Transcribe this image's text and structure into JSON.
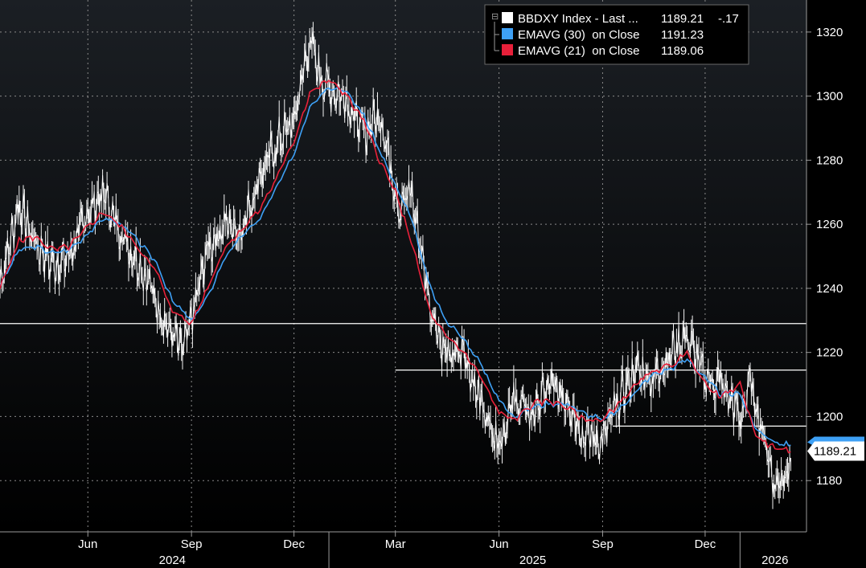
{
  "chart_data": {
    "type": "line",
    "x_range": [
      "2024-03-15",
      "2026-03-01"
    ],
    "ylim": [
      1164,
      1330
    ],
    "y_ticks": [
      1180,
      1200,
      1220,
      1240,
      1260,
      1280,
      1300,
      1320
    ],
    "month_ticks": [
      {
        "label": "Jun",
        "date": "2024-06-01"
      },
      {
        "label": "Sep",
        "date": "2024-09-01"
      },
      {
        "label": "Dec",
        "date": "2024-12-01"
      },
      {
        "label": "Mar",
        "date": "2025-03-01"
      },
      {
        "label": "Jun",
        "date": "2025-06-01"
      },
      {
        "label": "Sep",
        "date": "2025-09-01"
      },
      {
        "label": "Dec",
        "date": "2025-12-01"
      }
    ],
    "year_labels": [
      {
        "label": "2024",
        "center": "2024-08-15"
      },
      {
        "label": "2025",
        "center": "2025-07-01"
      },
      {
        "label": "2026",
        "center": "2026-02-01"
      }
    ],
    "year_boundaries": [
      "2025-01-01",
      "2026-01-01"
    ],
    "price_dates": [
      "2024-03-15",
      "2024-04-01",
      "2024-04-15",
      "2024-05-01",
      "2024-05-15",
      "2024-06-01",
      "2024-06-15",
      "2024-06-26",
      "2024-07-10",
      "2024-07-25",
      "2024-08-10",
      "2024-08-25",
      "2024-09-01",
      "2024-09-15",
      "2024-10-01",
      "2024-10-15",
      "2024-11-01",
      "2024-11-15",
      "2024-12-01",
      "2024-12-15",
      "2024-12-24",
      "2025-01-01",
      "2025-01-15",
      "2025-02-01",
      "2025-02-15",
      "2025-02-25",
      "2025-03-05",
      "2025-03-15",
      "2025-04-01",
      "2025-04-15",
      "2025-05-01",
      "2025-05-15",
      "2025-06-01",
      "2025-06-15",
      "2025-07-01",
      "2025-07-15",
      "2025-08-01",
      "2025-08-15",
      "2025-09-01",
      "2025-09-15",
      "2025-10-01",
      "2025-10-15",
      "2025-11-01",
      "2025-11-15",
      "2025-12-01",
      "2025-12-15",
      "2026-01-01",
      "2026-01-10",
      "2026-01-20",
      "2026-02-01",
      "2026-02-15"
    ],
    "price_values": [
      1242,
      1266,
      1254,
      1247,
      1250,
      1263,
      1270,
      1260,
      1252,
      1242,
      1228,
      1220,
      1230,
      1252,
      1260,
      1258,
      1275,
      1285,
      1292,
      1318,
      1306,
      1302,
      1300,
      1288,
      1295,
      1278,
      1265,
      1270,
      1235,
      1218,
      1220,
      1205,
      1192,
      1205,
      1200,
      1210,
      1205,
      1195,
      1192,
      1205,
      1215,
      1212,
      1220,
      1225,
      1212,
      1210,
      1200,
      1210,
      1198,
      1178,
      1186
    ],
    "ema30_dates": [
      "2024-03-15",
      "2024-04-01",
      "2024-04-15",
      "2024-05-01",
      "2024-05-15",
      "2024-06-01",
      "2024-06-15",
      "2024-07-01",
      "2024-07-15",
      "2024-08-01",
      "2024-08-15",
      "2024-09-01",
      "2024-09-15",
      "2024-10-01",
      "2024-10-15",
      "2024-11-01",
      "2024-11-15",
      "2024-12-01",
      "2024-12-15",
      "2025-01-01",
      "2025-01-15",
      "2025-02-01",
      "2025-02-15",
      "2025-03-01",
      "2025-03-15",
      "2025-04-01",
      "2025-04-15",
      "2025-05-01",
      "2025-05-15",
      "2025-06-01",
      "2025-06-15",
      "2025-07-01",
      "2025-07-15",
      "2025-08-01",
      "2025-08-15",
      "2025-09-01",
      "2025-09-15",
      "2025-10-01",
      "2025-10-15",
      "2025-11-01",
      "2025-11-15",
      "2025-12-01",
      "2025-12-15",
      "2026-01-01",
      "2026-01-15",
      "2026-02-01",
      "2026-02-15"
    ],
    "ema30_values": [
      1241,
      1252,
      1253,
      1251,
      1252,
      1257,
      1262,
      1260,
      1255,
      1248,
      1236,
      1230,
      1237,
      1250,
      1256,
      1262,
      1271,
      1282,
      1297,
      1303,
      1302,
      1294,
      1283,
      1272,
      1262,
      1240,
      1230,
      1224,
      1217,
      1205,
      1200,
      1203,
      1204,
      1204,
      1201,
      1199,
      1202,
      1208,
      1213,
      1215,
      1218,
      1212,
      1207,
      1207,
      1196,
      1192,
      1191
    ],
    "ema21_dates": [
      "2024-03-15",
      "2024-04-01",
      "2024-04-15",
      "2024-05-01",
      "2024-05-15",
      "2024-06-01",
      "2024-06-15",
      "2024-07-01",
      "2024-07-15",
      "2024-08-01",
      "2024-08-15",
      "2024-09-01",
      "2024-09-15",
      "2024-10-01",
      "2024-10-15",
      "2024-11-01",
      "2024-11-15",
      "2024-12-01",
      "2024-12-15",
      "2025-01-01",
      "2025-01-15",
      "2025-02-01",
      "2025-02-15",
      "2025-03-01",
      "2025-03-15",
      "2025-04-01",
      "2025-04-15",
      "2025-05-01",
      "2025-05-15",
      "2025-06-01",
      "2025-06-15",
      "2025-07-01",
      "2025-07-15",
      "2025-08-01",
      "2025-08-15",
      "2025-09-01",
      "2025-09-15",
      "2025-10-01",
      "2025-10-15",
      "2025-11-01",
      "2025-11-15",
      "2025-12-01",
      "2025-12-15",
      "2026-01-01",
      "2026-01-15",
      "2026-02-01",
      "2026-02-15"
    ],
    "ema21_values": [
      1240,
      1255,
      1256,
      1252,
      1253,
      1259,
      1264,
      1259,
      1253,
      1245,
      1233,
      1229,
      1240,
      1253,
      1258,
      1265,
      1274,
      1286,
      1301,
      1305,
      1301,
      1292,
      1280,
      1270,
      1255,
      1232,
      1225,
      1220,
      1213,
      1201,
      1199,
      1204,
      1205,
      1203,
      1199,
      1199,
      1204,
      1210,
      1214,
      1216,
      1220,
      1210,
      1206,
      1210,
      1194,
      1190,
      1189
    ],
    "horizontal_lines": [
      {
        "y": 1229,
        "from": "2024-03-15",
        "to": "2026-03-01"
      },
      {
        "y": 1214.5,
        "from": "2025-03-01",
        "to": "2026-03-01"
      },
      {
        "y": 1197,
        "from": "2025-09-10",
        "to": "2026-03-01"
      }
    ],
    "legend": [
      {
        "label": "BBDXY Index - Last ...",
        "value": "1189.21",
        "change": "-.17",
        "color": "#ffffff"
      },
      {
        "label": "EMAVG (30)  on Close",
        "value": "1191.23",
        "change": "",
        "color": "#3ea0f5"
      },
      {
        "label": "EMAVG (21)  on Close",
        "value": "1189.06",
        "change": "",
        "color": "#e8203a"
      }
    ],
    "last_price_label": "1189.21",
    "last_price": 1189.21,
    "colors": {
      "background_top": "#1b1f24",
      "background_bottom": "#000000",
      "price": "#ffffff",
      "ema30": "#3ea0f5",
      "ema21": "#e8203a",
      "grid": "#8a8a8a",
      "axis_text": "#ffffff"
    }
  }
}
